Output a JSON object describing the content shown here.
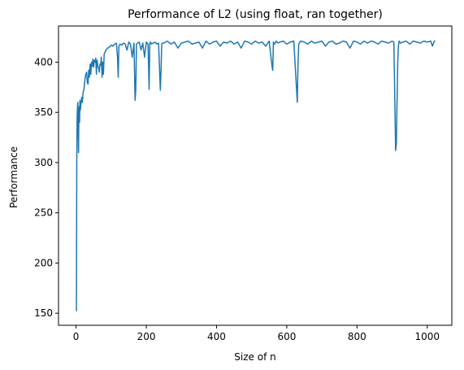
{
  "chart_data": {
    "type": "line",
    "title": "Performance of L2 (using float, ran together)",
    "xlabel": "Size of n",
    "ylabel": "Performance",
    "xlim": [
      -50,
      1070
    ],
    "ylim": [
      138,
      436
    ],
    "xticks": [
      0,
      200,
      400,
      600,
      800,
      1000
    ],
    "yticks": [
      150,
      200,
      250,
      300,
      350,
      400
    ],
    "grid": false,
    "legend": "none",
    "series_color": "#1f77b4",
    "series": [
      {
        "x": [
          1,
          2,
          3,
          4,
          5,
          6,
          7,
          8,
          9,
          10,
          11,
          12,
          14,
          16,
          18,
          20,
          22,
          24,
          26,
          28,
          30,
          32,
          34,
          36,
          38,
          40,
          42,
          44,
          46,
          48,
          50,
          52,
          54,
          56,
          58,
          60,
          62,
          64,
          66,
          68,
          70,
          72,
          74,
          76,
          78,
          80,
          85,
          90,
          95,
          100,
          105,
          110,
          115,
          118,
          120,
          122,
          125,
          130,
          135,
          140,
          145,
          150,
          155,
          160,
          165,
          168,
          170,
          172,
          175,
          180,
          185,
          190,
          195,
          200,
          205,
          208,
          210,
          212,
          215,
          220,
          225,
          230,
          235,
          240,
          242,
          244,
          246,
          250,
          255,
          260,
          270,
          280,
          290,
          300,
          310,
          320,
          330,
          340,
          350,
          360,
          370,
          380,
          390,
          400,
          410,
          420,
          430,
          440,
          450,
          460,
          470,
          480,
          490,
          500,
          510,
          520,
          530,
          540,
          550,
          555,
          558,
          560,
          562,
          565,
          570,
          575,
          580,
          590,
          600,
          610,
          620,
          630,
          632,
          634,
          636,
          640,
          650,
          660,
          670,
          680,
          690,
          700,
          710,
          720,
          730,
          740,
          750,
          760,
          770,
          780,
          790,
          800,
          810,
          820,
          830,
          840,
          850,
          860,
          870,
          880,
          890,
          900,
          905,
          910,
          912,
          914,
          916,
          918,
          920,
          925,
          930,
          940,
          950,
          960,
          970,
          980,
          990,
          1000,
          1010,
          1015,
          1020,
          1023
        ],
        "y": [
          152,
          300,
          345,
          355,
          360,
          330,
          310,
          348,
          356,
          340,
          362,
          352,
          358,
          365,
          360,
          370,
          372,
          378,
          385,
          388,
          390,
          380,
          378,
          392,
          385,
          398,
          388,
          400,
          396,
          403,
          395,
          402,
          400,
          404,
          388,
          402,
          396,
          395,
          390,
          398,
          397,
          405,
          385,
          400,
          388,
          408,
          412,
          414,
          415,
          417,
          416,
          418,
          419,
          405,
          385,
          416,
          418,
          417,
          419,
          418,
          412,
          420,
          418,
          405,
          419,
          362,
          372,
          418,
          419,
          420,
          412,
          419,
          405,
          420,
          418,
          373,
          419,
          420,
          418,
          419,
          420,
          418,
          419,
          372,
          392,
          418,
          419,
          419,
          420,
          421,
          418,
          420,
          414,
          419,
          420,
          421,
          418,
          419,
          420,
          414,
          421,
          418,
          420,
          421,
          416,
          420,
          419,
          421,
          418,
          420,
          414,
          421,
          420,
          418,
          421,
          419,
          420,
          416,
          421,
          405,
          396,
          392,
          420,
          418,
          421,
          419,
          420,
          421,
          418,
          420,
          421,
          360,
          398,
          418,
          419,
          421,
          420,
          418,
          421,
          419,
          420,
          421,
          416,
          420,
          421,
          418,
          419,
          421,
          420,
          414,
          421,
          420,
          418,
          421,
          419,
          421,
          420,
          418,
          421,
          420,
          419,
          421,
          420,
          312,
          318,
          360,
          400,
          416,
          421,
          419,
          420,
          421,
          418,
          421,
          420,
          419,
          421,
          420,
          421,
          416,
          421,
          421
        ]
      }
    ]
  }
}
